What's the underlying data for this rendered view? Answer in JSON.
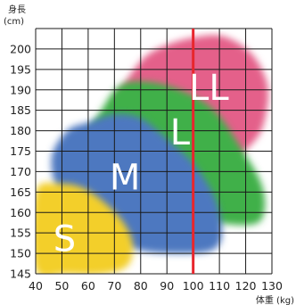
{
  "chart_data": {
    "type": "area",
    "ylabel_line1": "身長",
    "ylabel_line2": "(cm)",
    "xlabel": "体重 (kg)",
    "xlim": [
      40,
      130
    ],
    "ylim": [
      145,
      205
    ],
    "x_ticks": [
      "40",
      "50",
      "60",
      "70",
      "80",
      "90",
      "100",
      "110",
      "120",
      "130"
    ],
    "y_ticks": [
      "145",
      "150",
      "155",
      "160",
      "165",
      "170",
      "175",
      "180",
      "185",
      "190",
      "195",
      "200"
    ],
    "grid": true,
    "reference_line": {
      "x": 100,
      "color": "#e8262d"
    },
    "zones": [
      {
        "name": "LL",
        "color": "#e4608a",
        "label_at": [
          106,
          190
        ],
        "outline": [
          [
            70,
            187
          ],
          [
            80,
            197
          ],
          [
            90,
            201
          ],
          [
            102,
            203
          ],
          [
            112,
            203
          ],
          [
            122,
            199
          ],
          [
            128,
            192
          ],
          [
            128,
            185
          ],
          [
            124,
            178
          ],
          [
            112,
            172
          ],
          [
            98,
            172
          ],
          [
            88,
            176
          ],
          [
            76,
            179
          ],
          [
            70,
            182
          ]
        ]
      },
      {
        "name": "L",
        "color": "#3fb04a",
        "label_at": [
          95,
          179
        ],
        "outline": [
          [
            58,
            177
          ],
          [
            65,
            185
          ],
          [
            72,
            191
          ],
          [
            82,
            192
          ],
          [
            95,
            190
          ],
          [
            108,
            185
          ],
          [
            118,
            176
          ],
          [
            126,
            167
          ],
          [
            127,
            160
          ],
          [
            122,
            157
          ],
          [
            104,
            158
          ],
          [
            88,
            161
          ],
          [
            72,
            166
          ],
          [
            60,
            171
          ]
        ]
      },
      {
        "name": "M",
        "color": "#4d78c0",
        "label_at": [
          74,
          168
        ],
        "outline": [
          [
            46,
            173
          ],
          [
            52,
            180
          ],
          [
            60,
            182
          ],
          [
            70,
            184
          ],
          [
            80,
            183
          ],
          [
            90,
            178
          ],
          [
            100,
            172
          ],
          [
            108,
            164
          ],
          [
            111,
            156
          ],
          [
            108,
            151
          ],
          [
            95,
            150
          ],
          [
            78,
            151
          ],
          [
            62,
            156
          ],
          [
            50,
            163
          ]
        ]
      },
      {
        "name": "S",
        "color": "#f3cf2a",
        "label_at": [
          51,
          153
        ],
        "outline": [
          [
            40,
            165
          ],
          [
            49,
            167
          ],
          [
            58,
            166
          ],
          [
            67,
            162
          ],
          [
            74,
            157
          ],
          [
            77,
            152
          ],
          [
            75,
            147
          ],
          [
            66,
            145
          ],
          [
            52,
            145
          ],
          [
            40,
            146
          ]
        ]
      }
    ]
  }
}
